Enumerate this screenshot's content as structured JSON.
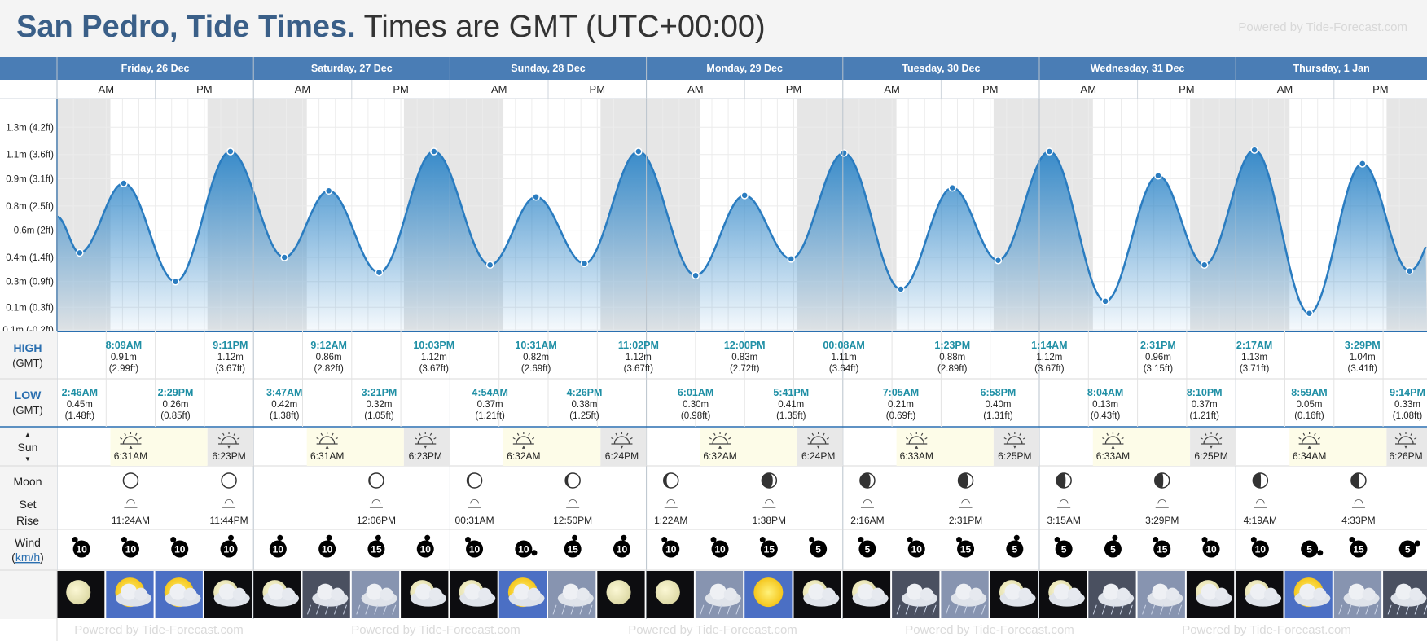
{
  "header": {
    "place": "San Pedro, Tide Times.",
    "tz": "Times are GMT (UTC+00:00)",
    "powered": "Powered by Tide-Forecast.com"
  },
  "footer": {
    "powered": "Powered by Tide-Forecast.com"
  },
  "labels": {
    "am": "AM",
    "pm": "PM",
    "high": "HIGH",
    "low": "LOW",
    "gmt": "(GMT)",
    "sun": "Sun",
    "moon": "Moon",
    "set": "Set",
    "rise": "Rise",
    "wind": "Wind",
    "wind_unit": "km/h"
  },
  "colors": {
    "header_band": "#4a7db5",
    "curve": "#2a7cc0",
    "night": "#e6e6e6",
    "sun_band": "#fdfce8",
    "title": "#3a5f88",
    "tide_time": "#1f8fa5"
  },
  "days": [
    "Friday, 26 Dec",
    "Saturday, 27 Dec",
    "Sunday, 28 Dec",
    "Monday, 29 Dec",
    "Tuesday, 30 Dec",
    "Wednesday, 31 Dec",
    "Thursday, 1 Jan"
  ],
  "chart_data": {
    "type": "area",
    "title": "San Pedro, Tide Times.",
    "ylabel": "",
    "y_ticks": [
      "0.1m (-0.2ft)",
      "0.1m (0.3ft)",
      "0.3m (0.9ft)",
      "0.4m (1.4ft)",
      "0.6m (2ft)",
      "0.8m (2.5ft)",
      "0.9m (3.1ft)",
      "1.1m (3.6ft)",
      "1.3m (4.2ft)"
    ],
    "ylim": [
      -0.07,
      1.47
    ],
    "grid": true,
    "series": [
      {
        "values": [
          [
            "26 Dec 00:00",
            0.69
          ],
          [
            "26 Dec 02:46",
            0.45
          ],
          [
            "26 Dec 08:09",
            0.91
          ],
          [
            "26 Dec 14:29",
            0.26
          ],
          [
            "26 Dec 21:11",
            1.12
          ],
          [
            "27 Dec 03:47",
            0.42
          ],
          [
            "27 Dec 09:12",
            0.86
          ],
          [
            "27 Dec 15:21",
            0.32
          ],
          [
            "27 Dec 22:03",
            1.12
          ],
          [
            "28 Dec 04:54",
            0.37
          ],
          [
            "28 Dec 10:31",
            0.82
          ],
          [
            "28 Dec 16:26",
            0.38
          ],
          [
            "28 Dec 23:02",
            1.12
          ],
          [
            "29 Dec 06:01",
            0.3
          ],
          [
            "29 Dec 12:00",
            0.83
          ],
          [
            "29 Dec 17:41",
            0.41
          ],
          [
            "30 Dec 00:08",
            1.11
          ],
          [
            "30 Dec 07:05",
            0.21
          ],
          [
            "30 Dec 13:23",
            0.88
          ],
          [
            "30 Dec 18:58",
            0.4
          ],
          [
            "31 Dec 01:14",
            1.12
          ],
          [
            "31 Dec 08:04",
            0.13
          ],
          [
            "31 Dec 14:31",
            0.96
          ],
          [
            "31 Dec 20:10",
            0.37
          ],
          [
            "1 Jan 02:17",
            1.13
          ],
          [
            "1 Jan 08:59",
            0.05
          ],
          [
            "1 Jan 15:29",
            1.04
          ],
          [
            "1 Jan 21:14",
            0.33
          ]
        ]
      }
    ]
  },
  "highs": [
    {
      "time": "8:09AM",
      "m": "0.91m",
      "ft": "(2.99ft)",
      "h": 8.15
    },
    {
      "time": "9:11PM",
      "m": "1.12m",
      "ft": "(3.67ft)",
      "h": 21.18
    },
    {
      "time": "9:12AM",
      "m": "0.86m",
      "ft": "(2.82ft)",
      "h": 33.2
    },
    {
      "time": "10:03PM",
      "m": "1.12m",
      "ft": "(3.67ft)",
      "h": 46.05
    },
    {
      "time": "10:31AM",
      "m": "0.82m",
      "ft": "(2.69ft)",
      "h": 58.52
    },
    {
      "time": "11:02PM",
      "m": "1.12m",
      "ft": "(3.67ft)",
      "h": 71.03
    },
    {
      "time": "12:00PM",
      "m": "0.83m",
      "ft": "(2.72ft)",
      "h": 84.0
    },
    {
      "time": "00:08AM",
      "m": "1.11m",
      "ft": "(3.64ft)",
      "h": 96.13
    },
    {
      "time": "1:23PM",
      "m": "0.88m",
      "ft": "(2.89ft)",
      "h": 109.38
    },
    {
      "time": "1:14AM",
      "m": "1.12m",
      "ft": "(3.67ft)",
      "h": 121.23
    },
    {
      "time": "2:31PM",
      "m": "0.96m",
      "ft": "(3.15ft)",
      "h": 134.52
    },
    {
      "time": "2:17AM",
      "m": "1.13m",
      "ft": "(3.71ft)",
      "h": 146.28
    },
    {
      "time": "3:29PM",
      "m": "1.04m",
      "ft": "(3.41ft)",
      "h": 159.48
    }
  ],
  "lows": [
    {
      "time": "2:46AM",
      "m": "0.45m",
      "ft": "(1.48ft)",
      "h": 2.77
    },
    {
      "time": "2:29PM",
      "m": "0.26m",
      "ft": "(0.85ft)",
      "h": 14.48
    },
    {
      "time": "3:47AM",
      "m": "0.42m",
      "ft": "(1.38ft)",
      "h": 27.78
    },
    {
      "time": "3:21PM",
      "m": "0.32m",
      "ft": "(1.05ft)",
      "h": 39.35
    },
    {
      "time": "4:54AM",
      "m": "0.37m",
      "ft": "(1.21ft)",
      "h": 52.9
    },
    {
      "time": "4:26PM",
      "m": "0.38m",
      "ft": "(1.25ft)",
      "h": 64.43
    },
    {
      "time": "6:01AM",
      "m": "0.30m",
      "ft": "(0.98ft)",
      "h": 78.02
    },
    {
      "time": "5:41PM",
      "m": "0.41m",
      "ft": "(1.35ft)",
      "h": 89.68
    },
    {
      "time": "7:05AM",
      "m": "0.21m",
      "ft": "(0.69ft)",
      "h": 103.08
    },
    {
      "time": "6:58PM",
      "m": "0.40m",
      "ft": "(1.31ft)",
      "h": 114.97
    },
    {
      "time": "8:04AM",
      "m": "0.13m",
      "ft": "(0.43ft)",
      "h": 128.07
    },
    {
      "time": "8:10PM",
      "m": "0.37m",
      "ft": "(1.21ft)",
      "h": 140.17
    },
    {
      "time": "8:59AM",
      "m": "0.05m",
      "ft": "(0.16ft)",
      "h": 152.98
    },
    {
      "time": "9:14PM",
      "m": "0.33m",
      "ft": "(1.08ft)",
      "h": 165.23
    }
  ],
  "sun": [
    {
      "rise": "6:31AM",
      "set": "6:23PM"
    },
    {
      "rise": "6:31AM",
      "set": "6:23PM"
    },
    {
      "rise": "6:32AM",
      "set": "6:24PM"
    },
    {
      "rise": "6:32AM",
      "set": "6:24PM"
    },
    {
      "rise": "6:33AM",
      "set": "6:25PM"
    },
    {
      "rise": "6:33AM",
      "set": "6:25PM"
    },
    {
      "rise": "6:34AM",
      "set": "6:26PM"
    }
  ],
  "moon": [
    {
      "col": 1,
      "event": "set",
      "time": "11:24AM"
    },
    {
      "col": 3,
      "event": "set",
      "time": "11:44PM"
    },
    {
      "col": 6,
      "event": "set",
      "time": "12:06PM"
    },
    {
      "col": 8,
      "event": "set",
      "time": "00:31AM"
    },
    {
      "col": 10,
      "event": "set",
      "time": "12:50PM"
    },
    {
      "col": 12,
      "event": "set",
      "time": "1:22AM"
    },
    {
      "col": 14,
      "event": "set",
      "time": "1:38PM"
    },
    {
      "col": 16,
      "event": "set",
      "time": "2:16AM"
    },
    {
      "col": 18,
      "event": "set",
      "time": "2:31PM"
    },
    {
      "col": 20,
      "event": "set",
      "time": "3:15AM"
    },
    {
      "col": 22,
      "event": "set",
      "time": "3:29PM"
    },
    {
      "col": 24,
      "event": "set",
      "time": "4:19AM"
    },
    {
      "col": 26,
      "event": "set",
      "time": "4:33PM"
    }
  ],
  "wind": [
    "10",
    "10",
    "10",
    "10",
    "10",
    "10",
    "15",
    "10",
    "10",
    "10",
    "15",
    "10",
    "10",
    "10",
    "15",
    "5",
    "5",
    "10",
    "15",
    "5",
    "5",
    "5",
    "15",
    "10",
    "10",
    "5",
    "15",
    "5"
  ],
  "wind_dir": [
    "N",
    "N",
    "N",
    "NE",
    "NE",
    "NE",
    "NE",
    "NE",
    "N",
    "SE",
    "NE",
    "NE",
    "N",
    "N",
    "N",
    "N",
    "N",
    "N",
    "N",
    "NE",
    "N",
    "NE",
    "N",
    "N",
    "N",
    "SE",
    "N",
    "E"
  ],
  "weather": [
    "clear-night",
    "partly-cloudy-day",
    "partly-cloudy-day",
    "partly-cloudy-night",
    "partly-cloudy-night",
    "rain-night",
    "rain-day",
    "partly-cloudy-night",
    "partly-cloudy-night",
    "partly-sunny-day",
    "rain-day",
    "clear-night",
    "clear-night",
    "rain-day",
    "sunny-day",
    "partly-cloudy-night",
    "partly-cloudy-night",
    "rain-night",
    "rain-day",
    "partly-cloudy-night",
    "partly-cloudy-night",
    "rain-night",
    "rain-day",
    "partly-cloudy-night",
    "partly-cloudy-night",
    "partly-sunny-day",
    "rain-day",
    "rain-night"
  ]
}
